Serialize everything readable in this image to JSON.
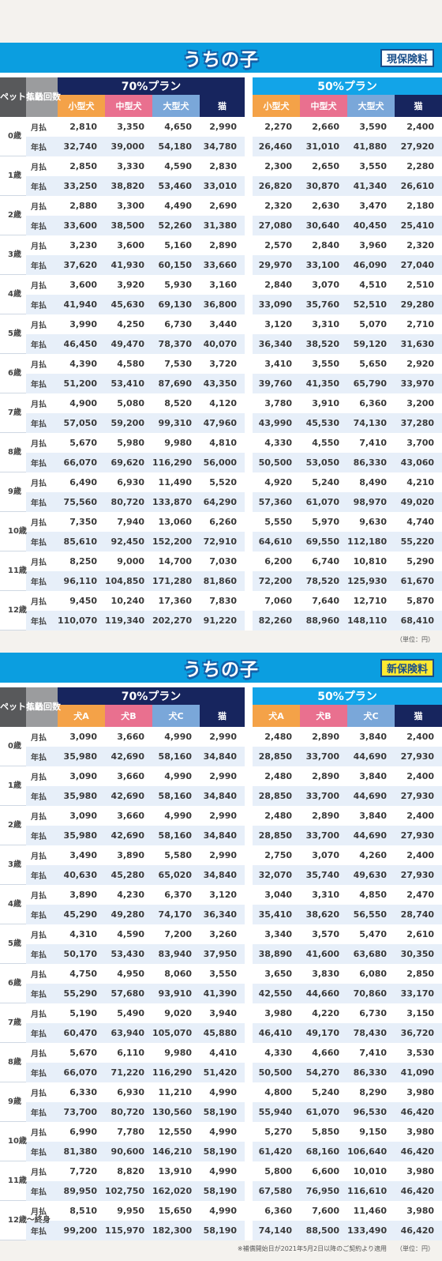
{
  "sections": [
    {
      "brand": "うちの子",
      "badge": "現保険料",
      "age_header": "ペット年齢",
      "pay_header": "払込回数",
      "plan70": "70%プラン",
      "plan50": "50%プラン",
      "cols": [
        "小型犬",
        "中型犬",
        "大型犬",
        "猫",
        "小型犬",
        "中型犬",
        "大型犬",
        "猫"
      ],
      "month_label": "月払",
      "year_label": "年払",
      "rows": [
        {
          "age": "0歳",
          "m": [
            "2,810",
            "3,350",
            "4,650",
            "2,990",
            "2,270",
            "2,660",
            "3,590",
            "2,400"
          ],
          "y": [
            "32,740",
            "39,000",
            "54,180",
            "34,780",
            "26,460",
            "31,010",
            "41,880",
            "27,920"
          ]
        },
        {
          "age": "1歳",
          "m": [
            "2,850",
            "3,330",
            "4,590",
            "2,830",
            "2,300",
            "2,650",
            "3,550",
            "2,280"
          ],
          "y": [
            "33,250",
            "38,820",
            "53,460",
            "33,010",
            "26,820",
            "30,870",
            "41,340",
            "26,610"
          ]
        },
        {
          "age": "2歳",
          "m": [
            "2,880",
            "3,300",
            "4,490",
            "2,690",
            "2,320",
            "2,630",
            "3,470",
            "2,180"
          ],
          "y": [
            "33,600",
            "38,500",
            "52,260",
            "31,380",
            "27,080",
            "30,640",
            "40,450",
            "25,410"
          ]
        },
        {
          "age": "3歳",
          "m": [
            "3,230",
            "3,600",
            "5,160",
            "2,890",
            "2,570",
            "2,840",
            "3,960",
            "2,320"
          ],
          "y": [
            "37,620",
            "41,930",
            "60,150",
            "33,660",
            "29,970",
            "33,100",
            "46,090",
            "27,040"
          ]
        },
        {
          "age": "4歳",
          "m": [
            "3,600",
            "3,920",
            "5,930",
            "3,160",
            "2,840",
            "3,070",
            "4,510",
            "2,510"
          ],
          "y": [
            "41,940",
            "45,630",
            "69,130",
            "36,800",
            "33,090",
            "35,760",
            "52,510",
            "29,280"
          ]
        },
        {
          "age": "5歳",
          "m": [
            "3,990",
            "4,250",
            "6,730",
            "3,440",
            "3,120",
            "3,310",
            "5,070",
            "2,710"
          ],
          "y": [
            "46,450",
            "49,470",
            "78,370",
            "40,070",
            "36,340",
            "38,520",
            "59,120",
            "31,630"
          ]
        },
        {
          "age": "6歳",
          "m": [
            "4,390",
            "4,580",
            "7,530",
            "3,720",
            "3,410",
            "3,550",
            "5,650",
            "2,920"
          ],
          "y": [
            "51,200",
            "53,410",
            "87,690",
            "43,350",
            "39,760",
            "41,350",
            "65,790",
            "33,970"
          ]
        },
        {
          "age": "7歳",
          "m": [
            "4,900",
            "5,080",
            "8,520",
            "4,120",
            "3,780",
            "3,910",
            "6,360",
            "3,200"
          ],
          "y": [
            "57,050",
            "59,200",
            "99,310",
            "47,960",
            "43,990",
            "45,530",
            "74,130",
            "37,280"
          ]
        },
        {
          "age": "8歳",
          "m": [
            "5,670",
            "5,980",
            "9,980",
            "4,810",
            "4,330",
            "4,550",
            "7,410",
            "3,700"
          ],
          "y": [
            "66,070",
            "69,620",
            "116,290",
            "56,000",
            "50,500",
            "53,050",
            "86,330",
            "43,060"
          ]
        },
        {
          "age": "9歳",
          "m": [
            "6,490",
            "6,930",
            "11,490",
            "5,520",
            "4,920",
            "5,240",
            "8,490",
            "4,210"
          ],
          "y": [
            "75,560",
            "80,720",
            "133,870",
            "64,290",
            "57,360",
            "61,070",
            "98,970",
            "49,020"
          ]
        },
        {
          "age": "10歳",
          "m": [
            "7,350",
            "7,940",
            "13,060",
            "6,260",
            "5,550",
            "5,970",
            "9,630",
            "4,740"
          ],
          "y": [
            "85,610",
            "92,450",
            "152,200",
            "72,910",
            "64,610",
            "69,550",
            "112,180",
            "55,220"
          ]
        },
        {
          "age": "11歳",
          "m": [
            "8,250",
            "9,000",
            "14,700",
            "7,030",
            "6,200",
            "6,740",
            "10,810",
            "5,290"
          ],
          "y": [
            "96,110",
            "104,850",
            "171,280",
            "81,860",
            "72,200",
            "78,520",
            "125,930",
            "61,670"
          ]
        },
        {
          "age": "12歳",
          "m": [
            "9,450",
            "10,240",
            "17,360",
            "7,830",
            "7,060",
            "7,640",
            "12,710",
            "5,870"
          ],
          "y": [
            "110,070",
            "119,340",
            "202,270",
            "91,220",
            "82,260",
            "88,960",
            "148,110",
            "68,410"
          ]
        }
      ],
      "note": "（単位：円）"
    },
    {
      "brand": "うちの子",
      "badge": "新保険料",
      "age_header": "ペット年齢",
      "pay_header": "払込回数",
      "plan70": "70%プラン",
      "plan50": "50%プラン",
      "cols": [
        "犬A",
        "犬B",
        "犬C",
        "猫",
        "犬A",
        "犬B",
        "犬C",
        "猫"
      ],
      "month_label": "月払",
      "year_label": "年払",
      "rows": [
        {
          "age": "0歳",
          "m": [
            "3,090",
            "3,660",
            "4,990",
            "2,990",
            "2,480",
            "2,890",
            "3,840",
            "2,400"
          ],
          "y": [
            "35,980",
            "42,690",
            "58,160",
            "34,840",
            "28,850",
            "33,700",
            "44,690",
            "27,930"
          ]
        },
        {
          "age": "1歳",
          "m": [
            "3,090",
            "3,660",
            "4,990",
            "2,990",
            "2,480",
            "2,890",
            "3,840",
            "2,400"
          ],
          "y": [
            "35,980",
            "42,690",
            "58,160",
            "34,840",
            "28,850",
            "33,700",
            "44,690",
            "27,930"
          ]
        },
        {
          "age": "2歳",
          "m": [
            "3,090",
            "3,660",
            "4,990",
            "2,990",
            "2,480",
            "2,890",
            "3,840",
            "2,400"
          ],
          "y": [
            "35,980",
            "42,690",
            "58,160",
            "34,840",
            "28,850",
            "33,700",
            "44,690",
            "27,930"
          ]
        },
        {
          "age": "3歳",
          "m": [
            "3,490",
            "3,890",
            "5,580",
            "2,990",
            "2,750",
            "3,070",
            "4,260",
            "2,400"
          ],
          "y": [
            "40,630",
            "45,280",
            "65,020",
            "34,840",
            "32,070",
            "35,740",
            "49,630",
            "27,930"
          ]
        },
        {
          "age": "4歳",
          "m": [
            "3,890",
            "4,230",
            "6,370",
            "3,120",
            "3,040",
            "3,310",
            "4,850",
            "2,470"
          ],
          "y": [
            "45,290",
            "49,280",
            "74,170",
            "36,340",
            "35,410",
            "38,620",
            "56,550",
            "28,740"
          ]
        },
        {
          "age": "5歳",
          "m": [
            "4,310",
            "4,590",
            "7,200",
            "3,260",
            "3,340",
            "3,570",
            "5,470",
            "2,610"
          ],
          "y": [
            "50,170",
            "53,430",
            "83,940",
            "37,950",
            "38,890",
            "41,600",
            "63,680",
            "30,350"
          ]
        },
        {
          "age": "6歳",
          "m": [
            "4,750",
            "4,950",
            "8,060",
            "3,550",
            "3,650",
            "3,830",
            "6,080",
            "2,850"
          ],
          "y": [
            "55,290",
            "57,680",
            "93,910",
            "41,390",
            "42,550",
            "44,660",
            "70,860",
            "33,170"
          ]
        },
        {
          "age": "7歳",
          "m": [
            "5,190",
            "5,490",
            "9,020",
            "3,940",
            "3,980",
            "4,220",
            "6,730",
            "3,150"
          ],
          "y": [
            "60,470",
            "63,940",
            "105,070",
            "45,880",
            "46,410",
            "49,170",
            "78,430",
            "36,720"
          ]
        },
        {
          "age": "8歳",
          "m": [
            "5,670",
            "6,110",
            "9,980",
            "4,410",
            "4,330",
            "4,660",
            "7,410",
            "3,530"
          ],
          "y": [
            "66,070",
            "71,220",
            "116,290",
            "51,420",
            "50,500",
            "54,270",
            "86,330",
            "41,090"
          ]
        },
        {
          "age": "9歳",
          "m": [
            "6,330",
            "6,930",
            "11,210",
            "4,990",
            "4,800",
            "5,240",
            "8,290",
            "3,980"
          ],
          "y": [
            "73,700",
            "80,720",
            "130,560",
            "58,190",
            "55,940",
            "61,070",
            "96,530",
            "46,420"
          ]
        },
        {
          "age": "10歳",
          "m": [
            "6,990",
            "7,780",
            "12,550",
            "4,990",
            "5,270",
            "5,850",
            "9,150",
            "3,980"
          ],
          "y": [
            "81,380",
            "90,600",
            "146,210",
            "58,190",
            "61,420",
            "68,160",
            "106,640",
            "46,420"
          ]
        },
        {
          "age": "11歳",
          "m": [
            "7,720",
            "8,820",
            "13,910",
            "4,990",
            "5,800",
            "6,600",
            "10,010",
            "3,980"
          ],
          "y": [
            "89,950",
            "102,750",
            "162,020",
            "58,190",
            "67,580",
            "76,950",
            "116,610",
            "46,420"
          ]
        },
        {
          "age": "12歳〜終身",
          "m": [
            "8,510",
            "9,950",
            "15,650",
            "4,990",
            "6,360",
            "7,600",
            "11,460",
            "3,980"
          ],
          "y": [
            "99,200",
            "115,970",
            "182,300",
            "58,190",
            "74,140",
            "88,500",
            "133,490",
            "46,420"
          ]
        }
      ],
      "note": "※補償開始日が2021年5月2日以降のご契約より適用　　（単位：円）"
    }
  ],
  "colors": {
    "banner": "#0b9ee0",
    "plan70": "#17255e",
    "plan50": "#12a4e8",
    "small_dog": "#f4a248",
    "medium_dog": "#e9708f",
    "large_dog": "#7aa7d9",
    "cat": "#17255e",
    "current_badge": "#ffffff",
    "new_badge": "#ffe932"
  }
}
